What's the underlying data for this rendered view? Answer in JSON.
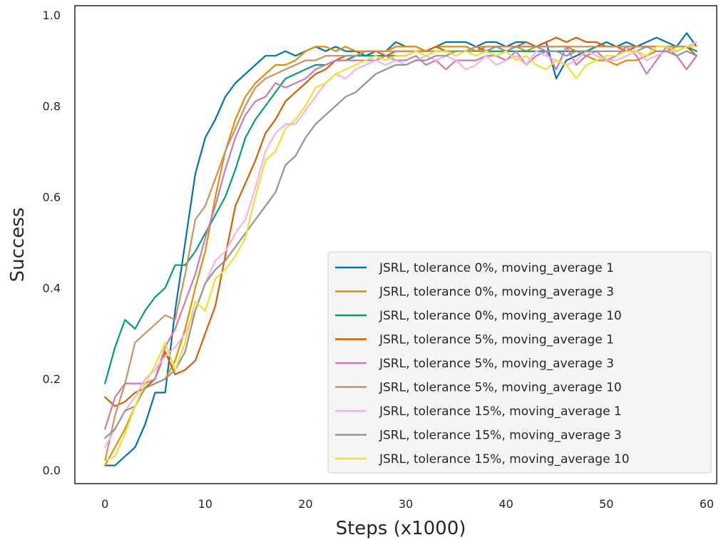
{
  "chart_data": {
    "type": "line",
    "title": "",
    "xlabel": "Steps (x1000)",
    "ylabel": "Success",
    "xlim": [
      -3,
      61
    ],
    "ylim": [
      -0.03,
      1.02
    ],
    "xticks": [
      0,
      10,
      20,
      30,
      40,
      50,
      60
    ],
    "yticks": [
      0.0,
      0.2,
      0.4,
      0.6,
      0.8,
      1.0
    ],
    "xtick_labels": [
      "0",
      "10",
      "20",
      "30",
      "40",
      "50",
      "60"
    ],
    "ytick_labels": [
      "0.0",
      "0.2",
      "0.4",
      "0.6",
      "0.8",
      "1.0"
    ],
    "grid": false,
    "legend_position": "lower-right",
    "x": [
      0,
      1,
      2,
      3,
      4,
      5,
      6,
      7,
      8,
      9,
      10,
      11,
      12,
      13,
      14,
      15,
      16,
      17,
      18,
      19,
      20,
      21,
      22,
      23,
      24,
      25,
      26,
      27,
      28,
      29,
      30,
      31,
      32,
      33,
      34,
      35,
      36,
      37,
      38,
      39,
      40,
      41,
      42,
      43,
      44,
      45,
      46,
      47,
      48,
      49,
      50,
      51,
      52,
      53,
      54,
      55,
      56,
      57,
      58,
      59
    ],
    "series": [
      {
        "name": "JSRL, tolerance 0%, moving_average 1",
        "color": "#0173b2",
        "values": [
          0.01,
          0.01,
          0.03,
          0.05,
          0.1,
          0.17,
          0.17,
          0.35,
          0.5,
          0.65,
          0.73,
          0.77,
          0.82,
          0.85,
          0.87,
          0.89,
          0.91,
          0.91,
          0.92,
          0.91,
          0.92,
          0.93,
          0.92,
          0.93,
          0.92,
          0.92,
          0.91,
          0.92,
          0.92,
          0.94,
          0.93,
          0.93,
          0.92,
          0.93,
          0.94,
          0.94,
          0.94,
          0.93,
          0.94,
          0.94,
          0.93,
          0.94,
          0.94,
          0.93,
          0.94,
          0.86,
          0.9,
          0.91,
          0.92,
          0.93,
          0.94,
          0.93,
          0.94,
          0.93,
          0.94,
          0.95,
          0.94,
          0.93,
          0.96,
          0.93
        ]
      },
      {
        "name": "JSRL, tolerance 0%, moving_average 3",
        "color": "#de8f05",
        "values": [
          0.01,
          0.05,
          0.09,
          0.14,
          0.18,
          0.19,
          0.2,
          0.24,
          0.31,
          0.4,
          0.48,
          0.6,
          0.7,
          0.77,
          0.82,
          0.85,
          0.87,
          0.89,
          0.89,
          0.9,
          0.92,
          0.93,
          0.93,
          0.92,
          0.93,
          0.92,
          0.92,
          0.92,
          0.92,
          0.93,
          0.93,
          0.93,
          0.92,
          0.93,
          0.93,
          0.93,
          0.93,
          0.92,
          0.93,
          0.93,
          0.92,
          0.93,
          0.92,
          0.93,
          0.93,
          0.93,
          0.93,
          0.92,
          0.91,
          0.9,
          0.9,
          0.89,
          0.9,
          0.9,
          0.91,
          0.92,
          0.92,
          0.93,
          0.93,
          0.92
        ]
      },
      {
        "name": "JSRL, tolerance 0%, moving_average 10",
        "color": "#029e73",
        "values": [
          0.19,
          0.27,
          0.33,
          0.31,
          0.35,
          0.38,
          0.4,
          0.45,
          0.45,
          0.48,
          0.52,
          0.56,
          0.6,
          0.66,
          0.73,
          0.77,
          0.8,
          0.83,
          0.86,
          0.87,
          0.88,
          0.89,
          0.89,
          0.9,
          0.9,
          0.91,
          0.91,
          0.91,
          0.91,
          0.91,
          0.91,
          0.92,
          0.92,
          0.92,
          0.92,
          0.92,
          0.92,
          0.92,
          0.92,
          0.92,
          0.92,
          0.92,
          0.92,
          0.92,
          0.92,
          0.92,
          0.92,
          0.92,
          0.92,
          0.93,
          0.93,
          0.93,
          0.93,
          0.93,
          0.93,
          0.93,
          0.93,
          0.93,
          0.93,
          0.92
        ]
      },
      {
        "name": "JSRL, tolerance 5%, moving_average 1",
        "color": "#d55e00",
        "values": [
          0.16,
          0.14,
          0.15,
          0.17,
          0.18,
          0.2,
          0.26,
          0.21,
          0.22,
          0.24,
          0.3,
          0.36,
          0.47,
          0.58,
          0.63,
          0.68,
          0.74,
          0.77,
          0.81,
          0.83,
          0.85,
          0.87,
          0.88,
          0.9,
          0.91,
          0.91,
          0.92,
          0.92,
          0.91,
          0.92,
          0.92,
          0.92,
          0.92,
          0.93,
          0.92,
          0.92,
          0.92,
          0.93,
          0.92,
          0.93,
          0.93,
          0.93,
          0.94,
          0.93,
          0.94,
          0.95,
          0.94,
          0.95,
          0.94,
          0.94,
          0.93,
          0.93,
          0.92,
          0.93,
          0.93,
          0.93,
          0.93,
          0.92,
          0.93,
          0.91
        ]
      },
      {
        "name": "JSRL, tolerance 5%, moving_average 3",
        "color": "#cc78bc",
        "values": [
          0.09,
          0.16,
          0.19,
          0.19,
          0.19,
          0.2,
          0.27,
          0.31,
          0.37,
          0.43,
          0.51,
          0.58,
          0.66,
          0.73,
          0.78,
          0.81,
          0.82,
          0.85,
          0.84,
          0.85,
          0.86,
          0.88,
          0.89,
          0.9,
          0.9,
          0.9,
          0.9,
          0.9,
          0.91,
          0.9,
          0.9,
          0.91,
          0.89,
          0.9,
          0.88,
          0.9,
          0.9,
          0.9,
          0.91,
          0.91,
          0.9,
          0.92,
          0.89,
          0.91,
          0.92,
          0.88,
          0.93,
          0.89,
          0.91,
          0.92,
          0.9,
          0.91,
          0.93,
          0.91,
          0.87,
          0.9,
          0.93,
          0.91,
          0.88,
          0.91
        ]
      },
      {
        "name": "JSRL, tolerance 5%, moving_average 10",
        "color": "#ca9161",
        "values": [
          0.02,
          0.12,
          0.19,
          0.28,
          0.3,
          0.32,
          0.34,
          0.33,
          0.43,
          0.55,
          0.58,
          0.64,
          0.7,
          0.75,
          0.8,
          0.84,
          0.86,
          0.87,
          0.88,
          0.89,
          0.9,
          0.9,
          0.91,
          0.91,
          0.91,
          0.91,
          0.92,
          0.92,
          0.92,
          0.92,
          0.92,
          0.92,
          0.92,
          0.92,
          0.92,
          0.92,
          0.92,
          0.93,
          0.93,
          0.93,
          0.93,
          0.93,
          0.93,
          0.93,
          0.93,
          0.93,
          0.93,
          0.93,
          0.93,
          0.93,
          0.93,
          0.93,
          0.93,
          0.93,
          0.93,
          0.93,
          0.93,
          0.93,
          0.93,
          0.93
        ]
      },
      {
        "name": "JSRL, tolerance 15%, moving_average 1",
        "color": "#fbafe4",
        "values": [
          0.05,
          0.09,
          0.13,
          0.16,
          0.2,
          0.22,
          0.25,
          0.27,
          0.3,
          0.35,
          0.41,
          0.46,
          0.48,
          0.52,
          0.55,
          0.62,
          0.7,
          0.74,
          0.76,
          0.76,
          0.79,
          0.82,
          0.85,
          0.87,
          0.86,
          0.88,
          0.89,
          0.9,
          0.89,
          0.9,
          0.89,
          0.9,
          0.91,
          0.9,
          0.91,
          0.9,
          0.88,
          0.89,
          0.91,
          0.89,
          0.9,
          0.91,
          0.89,
          0.92,
          0.91,
          0.9,
          0.89,
          0.9,
          0.92,
          0.91,
          0.9,
          0.9,
          0.91,
          0.92,
          0.9,
          0.91,
          0.92,
          0.92,
          0.93,
          0.94
        ]
      },
      {
        "name": "JSRL, tolerance 15%, moving_average 3",
        "color": "#949494",
        "values": [
          0.07,
          0.09,
          0.13,
          0.14,
          0.18,
          0.19,
          0.2,
          0.22,
          0.26,
          0.35,
          0.41,
          0.44,
          0.46,
          0.49,
          0.52,
          0.55,
          0.58,
          0.61,
          0.67,
          0.69,
          0.73,
          0.76,
          0.78,
          0.8,
          0.82,
          0.83,
          0.85,
          0.87,
          0.88,
          0.89,
          0.89,
          0.9,
          0.9,
          0.91,
          0.91,
          0.92,
          0.92,
          0.92,
          0.92,
          0.93,
          0.92,
          0.93,
          0.93,
          0.93,
          0.92,
          0.92,
          0.91,
          0.92,
          0.92,
          0.92,
          0.92,
          0.92,
          0.92,
          0.92,
          0.93,
          0.92,
          0.92,
          0.91,
          0.92,
          0.91
        ]
      },
      {
        "name": "JSRL, tolerance 15%, moving_average 10",
        "color": "#ece133",
        "values": [
          0.02,
          0.03,
          0.08,
          0.14,
          0.19,
          0.23,
          0.28,
          0.22,
          0.28,
          0.37,
          0.35,
          0.42,
          0.44,
          0.47,
          0.51,
          0.6,
          0.68,
          0.7,
          0.75,
          0.77,
          0.8,
          0.84,
          0.85,
          0.87,
          0.88,
          0.89,
          0.9,
          0.91,
          0.9,
          0.91,
          0.91,
          0.92,
          0.91,
          0.92,
          0.92,
          0.91,
          0.92,
          0.91,
          0.92,
          0.91,
          0.92,
          0.9,
          0.91,
          0.89,
          0.88,
          0.9,
          0.89,
          0.86,
          0.89,
          0.9,
          0.91,
          0.91,
          0.92,
          0.92,
          0.91,
          0.93,
          0.93,
          0.92,
          0.93,
          0.93
        ]
      }
    ]
  }
}
